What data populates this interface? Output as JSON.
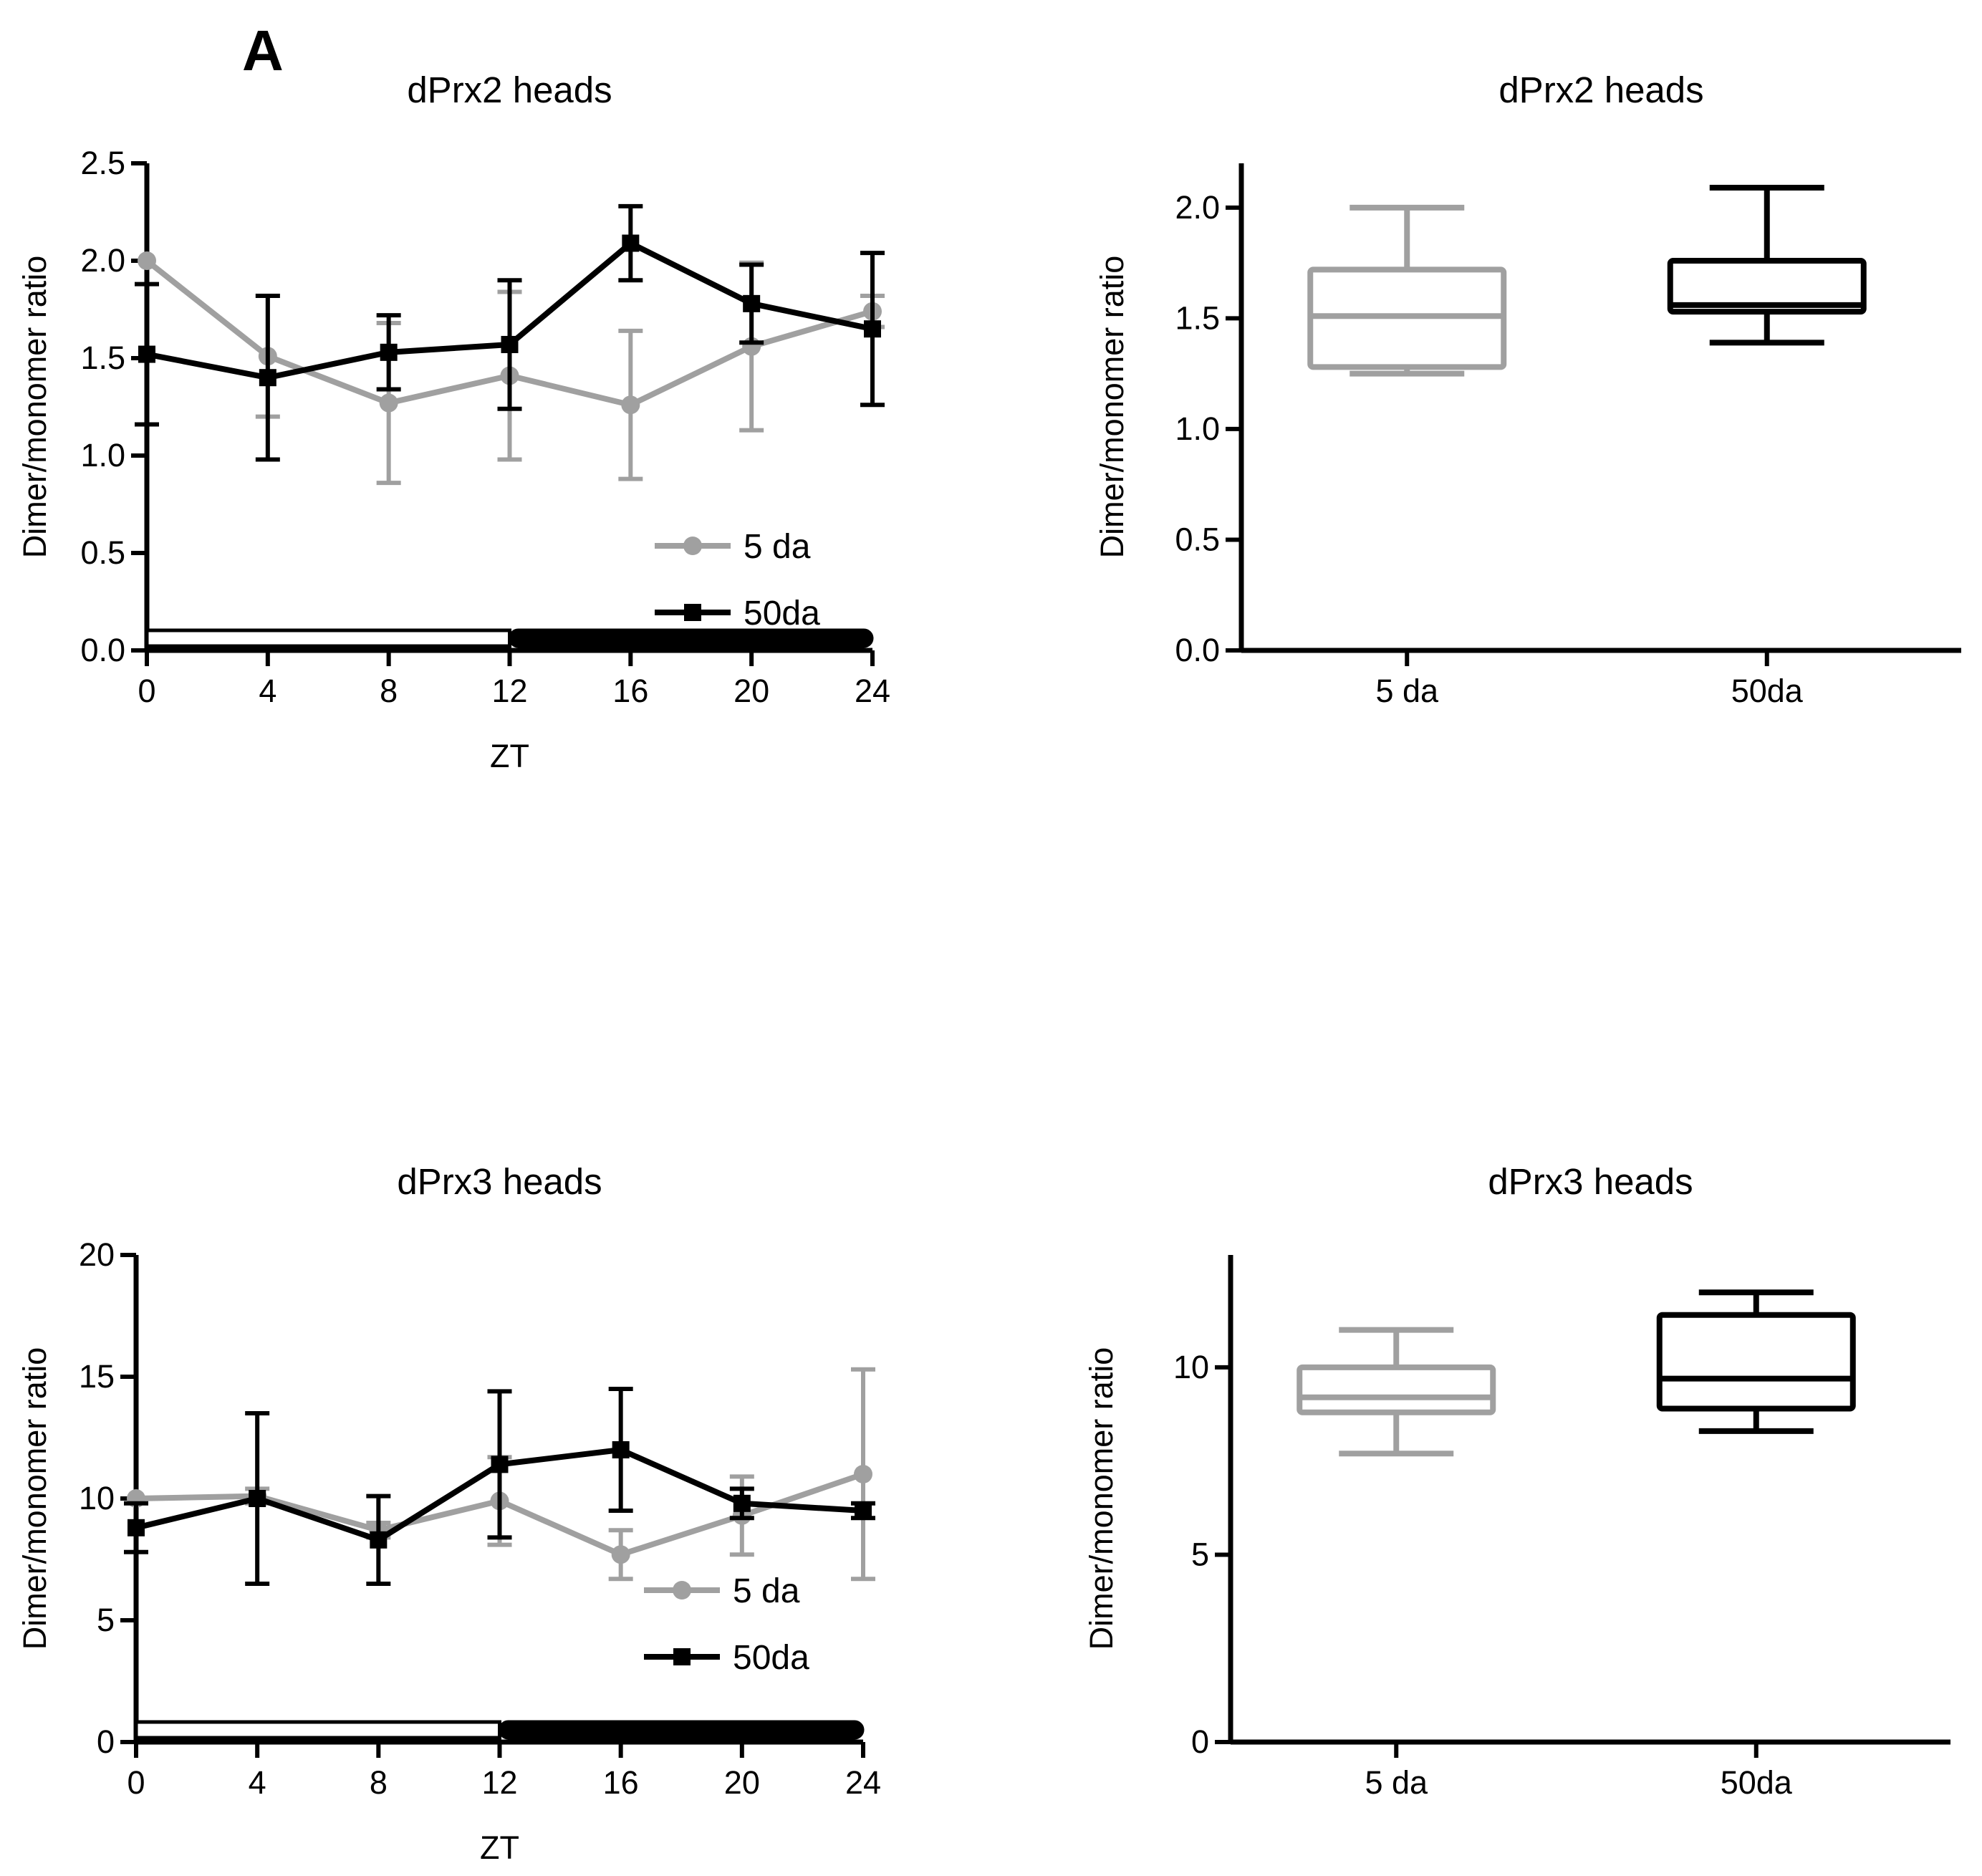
{
  "figure": {
    "panel_letter": "A"
  },
  "colors": {
    "young": "#a0a0a0",
    "old": "#000000"
  },
  "chart_data": [
    {
      "id": "prx2_time",
      "type": "line",
      "title": "dPrx2 heads",
      "xlabel": "ZT",
      "ylabel": "Dimer/monomer ratio",
      "xlim": [
        0,
        24
      ],
      "ylim": [
        0,
        2.5
      ],
      "xticks": [
        0,
        4,
        8,
        12,
        16,
        20,
        24
      ],
      "yticks": [
        0.0,
        0.5,
        1.0,
        1.5,
        2.0,
        2.5
      ],
      "ytick_labels": [
        "0.0",
        "0.5",
        "1.0",
        "1.5",
        "2.0",
        "2.5"
      ],
      "series": [
        {
          "name": "5 da",
          "color": "#a0a0a0",
          "marker": "circle",
          "x": [
            0,
            4,
            8,
            12,
            16,
            20,
            24
          ],
          "y": [
            2.0,
            1.51,
            1.27,
            1.41,
            1.26,
            1.56,
            1.74
          ],
          "err": [
            0,
            0.31,
            0.41,
            0.43,
            0.38,
            0.43,
            0.08
          ]
        },
        {
          "name": "50da",
          "color": "#000000",
          "marker": "square",
          "x": [
            0,
            4,
            8,
            12,
            16,
            20,
            24
          ],
          "y": [
            1.52,
            1.4,
            1.53,
            1.57,
            2.09,
            1.78,
            1.65
          ],
          "err": [
            0.36,
            0.42,
            0.19,
            0.33,
            0.19,
            0.2,
            0.39
          ]
        }
      ],
      "legend": {
        "position": "bottom-right",
        "entries": [
          "5 da",
          "50da"
        ]
      },
      "light_dark_bar": {
        "light": [
          0,
          12
        ],
        "dark": [
          12,
          24
        ]
      }
    },
    {
      "id": "prx2_box",
      "type": "box",
      "title": "dPrx2 heads",
      "ylabel": "Dimer/monomer ratio",
      "ylim": [
        0,
        2.2
      ],
      "yticks": [
        0.0,
        0.5,
        1.0,
        1.5,
        2.0
      ],
      "ytick_labels": [
        "0.0",
        "0.5",
        "1.0",
        "1.5",
        "2.0"
      ],
      "categories": [
        "5 da",
        "50da"
      ],
      "boxes": [
        {
          "name": "5 da",
          "color": "#a0a0a0",
          "min": 1.25,
          "q1": 1.28,
          "median": 1.51,
          "q3": 1.72,
          "max": 2.0
        },
        {
          "name": "50da",
          "color": "#000000",
          "min": 1.39,
          "q1": 1.53,
          "median": 1.56,
          "q3": 1.76,
          "max": 2.09
        }
      ]
    },
    {
      "id": "prx3_time",
      "type": "line",
      "title": "dPrx3 heads",
      "xlabel": "ZT",
      "ylabel": "Dimer/monomer ratio",
      "xlim": [
        0,
        24
      ],
      "ylim": [
        0,
        20
      ],
      "xticks": [
        0,
        4,
        8,
        12,
        16,
        20,
        24
      ],
      "yticks": [
        0,
        5,
        10,
        15,
        20
      ],
      "ytick_labels": [
        "0",
        "5",
        "10",
        "15",
        "20"
      ],
      "series": [
        {
          "name": "5 da",
          "color": "#a0a0a0",
          "marker": "circle",
          "x": [
            0,
            4,
            8,
            12,
            16,
            20,
            24
          ],
          "y": [
            10.0,
            10.1,
            8.7,
            9.9,
            7.7,
            9.3,
            11.0
          ],
          "err": [
            0,
            0.3,
            0.3,
            1.8,
            1.0,
            1.6,
            4.3
          ]
        },
        {
          "name": "50da",
          "color": "#000000",
          "marker": "square",
          "x": [
            0,
            4,
            8,
            12,
            16,
            20,
            24
          ],
          "y": [
            8.8,
            10.0,
            8.3,
            11.4,
            12.0,
            9.8,
            9.5
          ],
          "err": [
            1.0,
            3.5,
            1.8,
            3.0,
            2.5,
            0.6,
            0.3
          ]
        }
      ],
      "legend": {
        "position": "bottom-right",
        "entries": [
          "5 da",
          "50da"
        ]
      },
      "light_dark_bar": {
        "light": [
          0,
          12
        ],
        "dark": [
          12,
          24
        ]
      }
    },
    {
      "id": "prx3_box",
      "type": "box",
      "title": "dPrx3 heads",
      "ylabel": "Dimer/monomer ratio",
      "ylim": [
        0,
        13
      ],
      "yticks": [
        0,
        5,
        10
      ],
      "ytick_labels": [
        "0",
        "5",
        "10"
      ],
      "categories": [
        "5 da",
        "50da"
      ],
      "boxes": [
        {
          "name": "5 da",
          "color": "#a0a0a0",
          "min": 7.7,
          "q1": 8.8,
          "median": 9.2,
          "q3": 10.0,
          "max": 11.0
        },
        {
          "name": "50da",
          "color": "#000000",
          "min": 8.3,
          "q1": 8.9,
          "median": 9.7,
          "q3": 11.4,
          "max": 12.0
        }
      ]
    }
  ]
}
